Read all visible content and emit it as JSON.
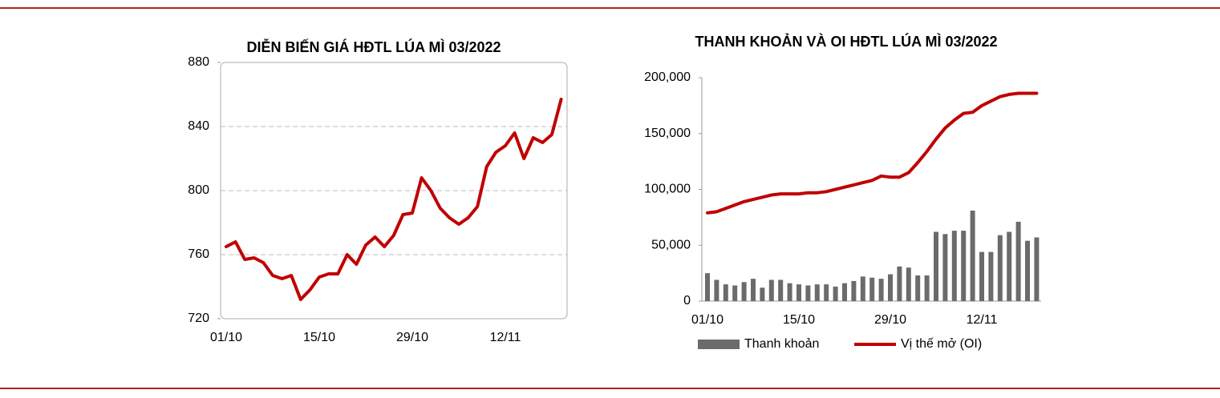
{
  "chart_data": [
    {
      "type": "line",
      "title": "DIỄN BIẾN GIÁ HĐTL LÚA MÌ 03/2022",
      "categories": [
        "01/10",
        null,
        null,
        null,
        null,
        null,
        null,
        null,
        null,
        null,
        "15/10",
        null,
        null,
        null,
        null,
        null,
        null,
        null,
        null,
        null,
        "29/10",
        null,
        null,
        null,
        null,
        null,
        null,
        null,
        null,
        null,
        "12/11",
        null,
        null,
        null,
        null,
        null,
        null
      ],
      "values": [
        765,
        768,
        757,
        758,
        755,
        747,
        745,
        747,
        732,
        738,
        746,
        748,
        748,
        760,
        754,
        766,
        771,
        765,
        772,
        785,
        786,
        808,
        800,
        789,
        783,
        779,
        783,
        790,
        815,
        824,
        828,
        836,
        820,
        833,
        830,
        835,
        857
      ],
      "color": "#c00000",
      "ylim": [
        720,
        880
      ],
      "yticks": [
        720,
        760,
        800,
        840,
        880
      ],
      "grid": true
    },
    {
      "type": "combo",
      "title": "THANH KHOẢN VÀ OI HĐTL LÚA MÌ  03/2022",
      "categories": [
        "01/10",
        null,
        null,
        null,
        null,
        null,
        null,
        null,
        null,
        null,
        "15/10",
        null,
        null,
        null,
        null,
        null,
        null,
        null,
        null,
        null,
        "29/10",
        null,
        null,
        null,
        null,
        null,
        null,
        null,
        null,
        null,
        "12/11",
        null,
        null,
        null,
        null,
        null,
        null
      ],
      "series": [
        {
          "name": "Thanh khoản",
          "type": "bar",
          "color": "#6b6b6b",
          "values": [
            25000,
            19000,
            15000,
            14000,
            17000,
            20000,
            12000,
            19000,
            19000,
            16000,
            15000,
            14000,
            15000,
            15000,
            13000,
            16000,
            18000,
            22000,
            21000,
            20000,
            24000,
            31000,
            30000,
            23000,
            23000,
            62000,
            60000,
            63000,
            63000,
            81000,
            44000,
            44000,
            59000,
            62000,
            71000,
            54000,
            57000
          ]
        },
        {
          "name": "Vị thế mở (OI)",
          "type": "line",
          "color": "#c00000",
          "values": [
            79000,
            80000,
            83000,
            86000,
            89000,
            91000,
            93000,
            95000,
            96000,
            96000,
            96000,
            97000,
            97000,
            98000,
            100000,
            102000,
            104000,
            106000,
            108000,
            112000,
            111000,
            111000,
            115000,
            124000,
            134000,
            145000,
            155000,
            162000,
            168000,
            169000,
            175000,
            179000,
            183000,
            185000,
            186000,
            186000,
            186000
          ]
        }
      ],
      "ylim": [
        0,
        200000
      ],
      "yticks": [
        0,
        {
          "value": 50000,
          "label": "50,000"
        },
        {
          "value": 100000,
          "label": "100,000"
        },
        {
          "value": 150000,
          "label": "150,000"
        },
        {
          "value": 200000,
          "label": "200,000"
        }
      ],
      "grid": false,
      "legend": "bottom"
    }
  ]
}
